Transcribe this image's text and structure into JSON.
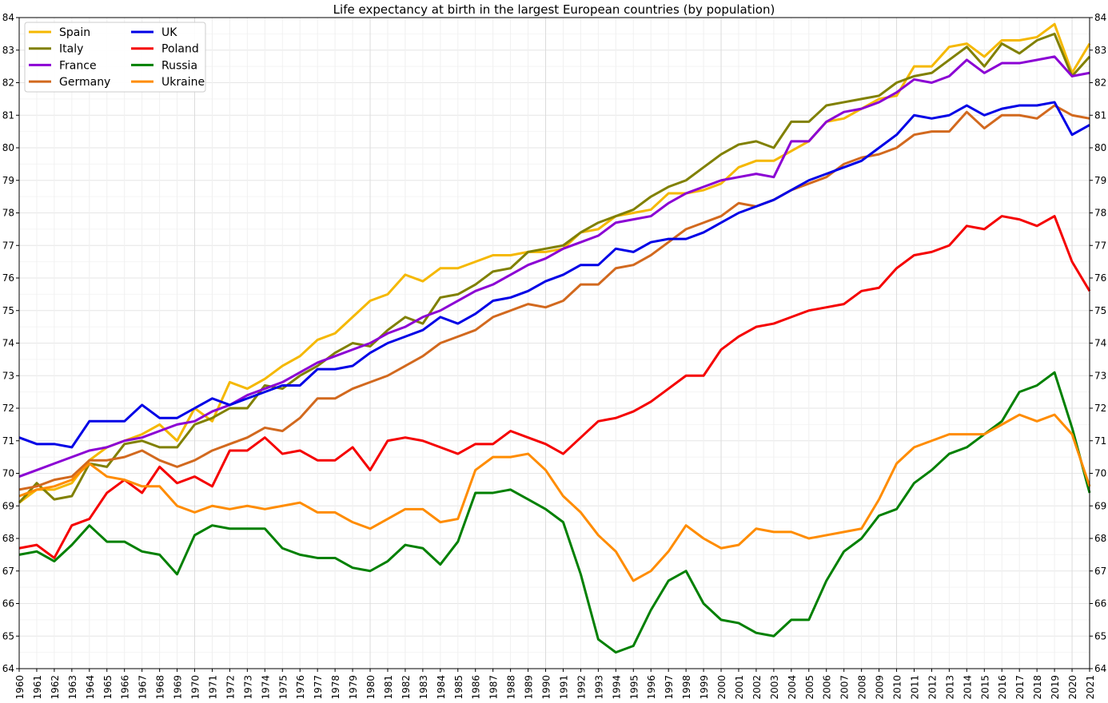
{
  "chart_data": {
    "type": "line",
    "title": "Life expectancy at birth in the largest European countries (by population)",
    "xlabel": "",
    "ylabel": "",
    "xlim": [
      1960,
      2021
    ],
    "ylim": [
      64,
      84
    ],
    "yticks": [
      64,
      65,
      66,
      67,
      68,
      69,
      70,
      71,
      72,
      73,
      74,
      75,
      76,
      77,
      78,
      79,
      80,
      81,
      82,
      83,
      84
    ],
    "grid": true,
    "legend_position": "top-left",
    "x": [
      1960,
      1961,
      1962,
      1963,
      1964,
      1965,
      1966,
      1967,
      1968,
      1969,
      1970,
      1971,
      1972,
      1973,
      1974,
      1975,
      1976,
      1977,
      1978,
      1979,
      1980,
      1981,
      1982,
      1983,
      1984,
      1985,
      1986,
      1987,
      1988,
      1989,
      1990,
      1991,
      1992,
      1993,
      1994,
      1995,
      1996,
      1997,
      1998,
      1999,
      2000,
      2001,
      2002,
      2003,
      2004,
      2005,
      2006,
      2007,
      2008,
      2009,
      2010,
      2011,
      2012,
      2013,
      2014,
      2015,
      2016,
      2017,
      2018,
      2019,
      2020,
      2021
    ],
    "series": [
      {
        "name": "Spain",
        "color": "#f5b800",
        "values": [
          69.1,
          69.5,
          69.5,
          69.7,
          70.4,
          70.8,
          71.0,
          71.2,
          71.5,
          71.0,
          72.0,
          71.6,
          72.8,
          72.6,
          72.9,
          73.3,
          73.6,
          74.1,
          74.3,
          74.8,
          75.3,
          75.5,
          76.1,
          75.9,
          76.3,
          76.3,
          76.5,
          76.7,
          76.7,
          76.8,
          76.8,
          76.9,
          77.4,
          77.5,
          77.9,
          78.0,
          78.1,
          78.6,
          78.6,
          78.7,
          78.9,
          79.4,
          79.6,
          79.6,
          79.9,
          80.2,
          80.8,
          80.9,
          81.2,
          81.5,
          81.6,
          82.5,
          82.5,
          83.1,
          83.2,
          82.8,
          83.3,
          83.3,
          83.4,
          83.8,
          82.3,
          83.2
        ]
      },
      {
        "name": "Italy",
        "color": "#808000",
        "values": [
          69.1,
          69.7,
          69.2,
          69.3,
          70.3,
          70.2,
          70.9,
          71.0,
          70.8,
          70.8,
          71.5,
          71.7,
          72.0,
          72.0,
          72.7,
          72.6,
          73.0,
          73.3,
          73.7,
          74.0,
          73.9,
          74.4,
          74.8,
          74.6,
          75.4,
          75.5,
          75.8,
          76.2,
          76.3,
          76.8,
          76.9,
          77.0,
          77.4,
          77.7,
          77.9,
          78.1,
          78.5,
          78.8,
          79.0,
          79.4,
          79.8,
          80.1,
          80.2,
          80.0,
          80.8,
          80.8,
          81.3,
          81.4,
          81.5,
          81.6,
          82.0,
          82.2,
          82.3,
          82.7,
          83.1,
          82.5,
          83.2,
          82.9,
          83.3,
          83.5,
          82.2,
          82.8
        ]
      },
      {
        "name": "France",
        "color": "#8b00d4",
        "values": [
          69.9,
          70.1,
          70.3,
          70.5,
          70.7,
          70.8,
          71.0,
          71.1,
          71.3,
          71.5,
          71.6,
          71.9,
          72.1,
          72.4,
          72.6,
          72.8,
          73.1,
          73.4,
          73.6,
          73.8,
          74.0,
          74.3,
          74.5,
          74.8,
          75.0,
          75.3,
          75.6,
          75.8,
          76.1,
          76.4,
          76.6,
          76.9,
          77.1,
          77.3,
          77.7,
          77.8,
          77.9,
          78.3,
          78.6,
          78.8,
          79.0,
          79.1,
          79.2,
          79.1,
          80.2,
          80.2,
          80.8,
          81.1,
          81.2,
          81.4,
          81.7,
          82.1,
          82.0,
          82.2,
          82.7,
          82.3,
          82.6,
          82.6,
          82.7,
          82.8,
          82.2,
          82.3
        ]
      },
      {
        "name": "Germany",
        "color": "#d2691e",
        "values": [
          69.5,
          69.6,
          69.8,
          69.9,
          70.4,
          70.4,
          70.5,
          70.7,
          70.4,
          70.2,
          70.4,
          70.7,
          70.9,
          71.1,
          71.4,
          71.3,
          71.7,
          72.3,
          72.3,
          72.6,
          72.8,
          73.0,
          73.3,
          73.6,
          74.0,
          74.2,
          74.4,
          74.8,
          75.0,
          75.2,
          75.1,
          75.3,
          75.8,
          75.8,
          76.3,
          76.4,
          76.7,
          77.1,
          77.5,
          77.7,
          77.9,
          78.3,
          78.2,
          78.4,
          78.7,
          78.9,
          79.1,
          79.5,
          79.7,
          79.8,
          80.0,
          80.4,
          80.5,
          80.5,
          81.1,
          80.6,
          81.0,
          81.0,
          80.9,
          81.3,
          81.0,
          80.9
        ]
      },
      {
        "name": "UK",
        "color": "#0000e6",
        "values": [
          71.1,
          70.9,
          70.9,
          70.8,
          71.6,
          71.6,
          71.6,
          72.1,
          71.7,
          71.7,
          72.0,
          72.3,
          72.1,
          72.3,
          72.5,
          72.7,
          72.7,
          73.2,
          73.2,
          73.3,
          73.7,
          74.0,
          74.2,
          74.4,
          74.8,
          74.6,
          74.9,
          75.3,
          75.4,
          75.6,
          75.9,
          76.1,
          76.4,
          76.4,
          76.9,
          76.8,
          77.1,
          77.2,
          77.2,
          77.4,
          77.7,
          78.0,
          78.2,
          78.4,
          78.7,
          79.0,
          79.2,
          79.4,
          79.6,
          80.0,
          80.4,
          81.0,
          80.9,
          81.0,
          81.3,
          81.0,
          81.2,
          81.3,
          81.3,
          81.4,
          80.4,
          80.7
        ]
      },
      {
        "name": "Poland",
        "color": "#f50000",
        "values": [
          67.7,
          67.8,
          67.4,
          68.4,
          68.6,
          69.4,
          69.8,
          69.4,
          70.2,
          69.7,
          69.9,
          69.6,
          70.7,
          70.7,
          71.1,
          70.6,
          70.7,
          70.4,
          70.4,
          70.8,
          70.1,
          71.0,
          71.1,
          71.0,
          70.8,
          70.6,
          70.9,
          70.9,
          71.3,
          71.1,
          70.9,
          70.6,
          71.1,
          71.6,
          71.7,
          71.9,
          72.2,
          72.6,
          73.0,
          73.0,
          73.8,
          74.2,
          74.5,
          74.6,
          74.8,
          75.0,
          75.1,
          75.2,
          75.6,
          75.7,
          76.3,
          76.7,
          76.8,
          77.0,
          77.6,
          77.5,
          77.9,
          77.8,
          77.6,
          77.9,
          76.5,
          75.6
        ]
      },
      {
        "name": "Russia",
        "color": "#008000",
        "values": [
          67.5,
          67.6,
          67.3,
          67.8,
          68.4,
          67.9,
          67.9,
          67.6,
          67.5,
          66.9,
          68.1,
          68.4,
          68.3,
          68.3,
          68.3,
          67.7,
          67.5,
          67.4,
          67.4,
          67.1,
          67.0,
          67.3,
          67.8,
          67.7,
          67.2,
          67.9,
          69.4,
          69.4,
          69.5,
          69.2,
          68.9,
          68.5,
          66.9,
          64.9,
          64.5,
          64.7,
          65.8,
          66.7,
          67.0,
          66.0,
          65.5,
          65.4,
          65.1,
          65.0,
          65.5,
          65.5,
          66.7,
          67.6,
          68.0,
          68.7,
          68.9,
          69.7,
          70.1,
          70.6,
          70.8,
          71.2,
          71.6,
          72.5,
          72.7,
          73.1,
          71.4,
          69.4
        ]
      },
      {
        "name": "Ukraine",
        "color": "#ff8c00",
        "values": [
          69.3,
          69.5,
          69.6,
          69.8,
          70.3,
          69.9,
          69.8,
          69.6,
          69.6,
          69.0,
          68.8,
          69.0,
          68.9,
          69.0,
          68.9,
          69.0,
          69.1,
          68.8,
          68.8,
          68.5,
          68.3,
          68.6,
          68.9,
          68.9,
          68.5,
          68.6,
          70.1,
          70.5,
          70.5,
          70.6,
          70.1,
          69.3,
          68.8,
          68.1,
          67.6,
          66.7,
          67.0,
          67.6,
          68.4,
          68.0,
          67.7,
          67.8,
          68.3,
          68.2,
          68.2,
          68.0,
          68.1,
          68.2,
          68.3,
          69.2,
          70.3,
          70.8,
          71.0,
          71.2,
          71.2,
          71.2,
          71.5,
          71.8,
          71.6,
          71.8,
          71.2,
          69.6
        ]
      }
    ]
  }
}
